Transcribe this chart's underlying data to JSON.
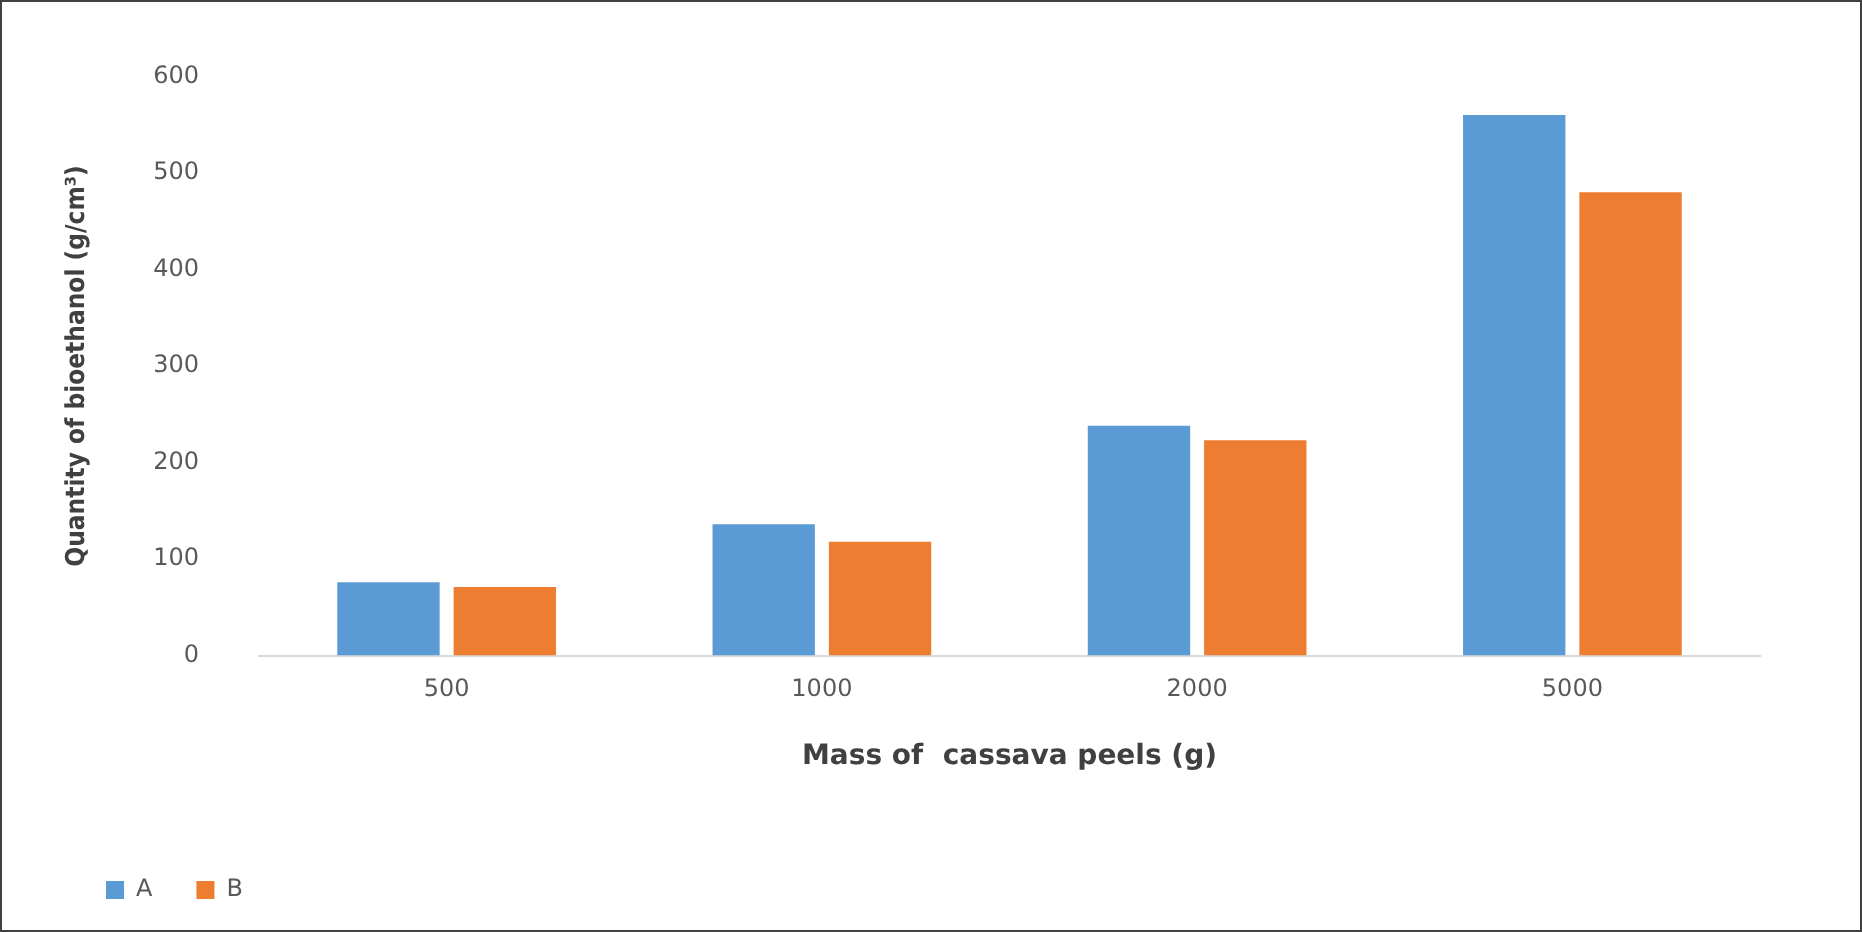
{
  "chart_data": {
    "type": "bar",
    "xlabel": "Mass of  cassava peels (g)",
    "ylabel": "Quantity of bioethanol (g/cm³)",
    "categories": [
      "500",
      "1000",
      "2000",
      "5000"
    ],
    "series": [
      {
        "name": "A",
        "color": "#5b9bd5",
        "values": [
          76,
          136,
          238,
          560
        ]
      },
      {
        "name": "B",
        "color": "#ed7d31",
        "values": [
          71,
          118,
          223,
          480
        ]
      }
    ],
    "ylim": [
      0,
      600
    ],
    "yticks": [
      0,
      100,
      200,
      300,
      400,
      500,
      600
    ],
    "grid": false,
    "legend": "bottom left"
  }
}
